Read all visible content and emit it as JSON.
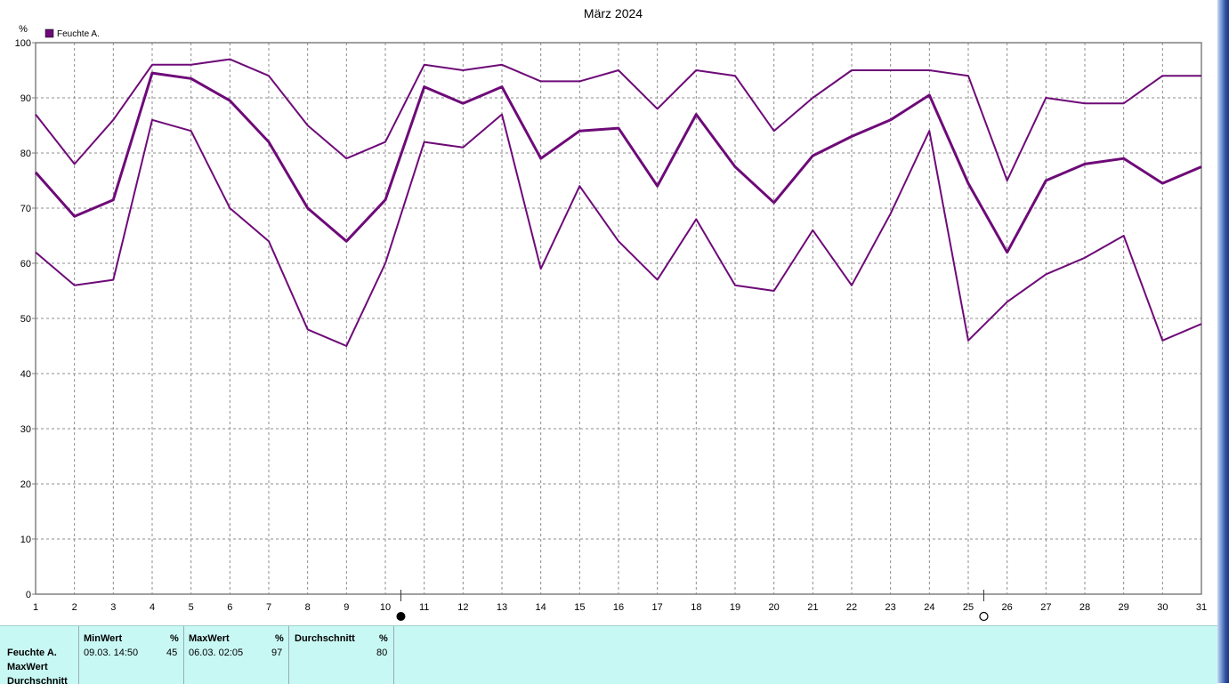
{
  "chart_data": {
    "type": "line",
    "title": "März 2024",
    "ylabel": "%",
    "xlabel": "",
    "ylim": [
      0,
      100
    ],
    "y_ticks": [
      "0",
      "10",
      "20",
      "30",
      "40",
      "50",
      "60",
      "70",
      "80",
      "90",
      "100"
    ],
    "x_ticks": [
      "1",
      "2",
      "3",
      "4",
      "5",
      "6",
      "7",
      "8",
      "9",
      "10",
      "11",
      "12",
      "13",
      "14",
      "15",
      "16",
      "17",
      "18",
      "19",
      "20",
      "21",
      "22",
      "23",
      "24",
      "25",
      "26",
      "27",
      "28",
      "29",
      "30",
      "31"
    ],
    "grid": true,
    "legend": "top-left",
    "legend_label": "Feuchte A.",
    "color": "#6e0a78",
    "x": [
      1,
      2,
      3,
      4,
      5,
      6,
      7,
      8,
      9,
      10,
      11,
      12,
      13,
      14,
      15,
      16,
      17,
      18,
      19,
      20,
      21,
      22,
      23,
      24,
      25,
      26,
      27,
      28,
      29,
      30,
      31
    ],
    "series": [
      {
        "role": "max",
        "values": [
          87,
          78,
          86,
          96,
          96,
          97,
          94,
          85,
          79,
          82,
          96,
          95,
          96,
          93,
          93,
          95,
          88,
          95,
          94,
          84,
          90,
          95,
          95,
          95,
          94,
          75,
          90,
          89,
          89,
          94,
          94
        ]
      },
      {
        "role": "avg",
        "values": [
          76.5,
          68.5,
          71.5,
          94.5,
          93.5,
          89.5,
          82,
          70,
          64,
          71.5,
          92,
          89,
          92,
          79,
          84,
          84.5,
          74,
          87,
          77.5,
          71,
          79.5,
          83,
          86,
          90.5,
          74.5,
          62,
          75,
          78,
          79,
          74.5,
          77.5
        ]
      },
      {
        "role": "min",
        "values": [
          62,
          56,
          57,
          86,
          84,
          70,
          64,
          48,
          45,
          60,
          82,
          81,
          87,
          59,
          74,
          64,
          57,
          68,
          56,
          55,
          66,
          56,
          69,
          84,
          46,
          53,
          58,
          61,
          65,
          46,
          49
        ]
      }
    ],
    "markers": [
      {
        "type": "new-moon",
        "x": 10.4
      },
      {
        "type": "full-moon",
        "x": 25.4
      }
    ]
  },
  "stats": {
    "row_labels": [
      "Feuchte A.",
      "MaxWert",
      "Durchschnitt"
    ],
    "columns": [
      {
        "header": "MinWert",
        "unit": "%",
        "date": "09.03.  14:50",
        "value": "45"
      },
      {
        "header": "MaxWert",
        "unit": "%",
        "date": "06.03.  02:05",
        "value": "97"
      },
      {
        "header": "Durchschnitt",
        "unit": "%",
        "date": "",
        "value": "80"
      }
    ]
  }
}
